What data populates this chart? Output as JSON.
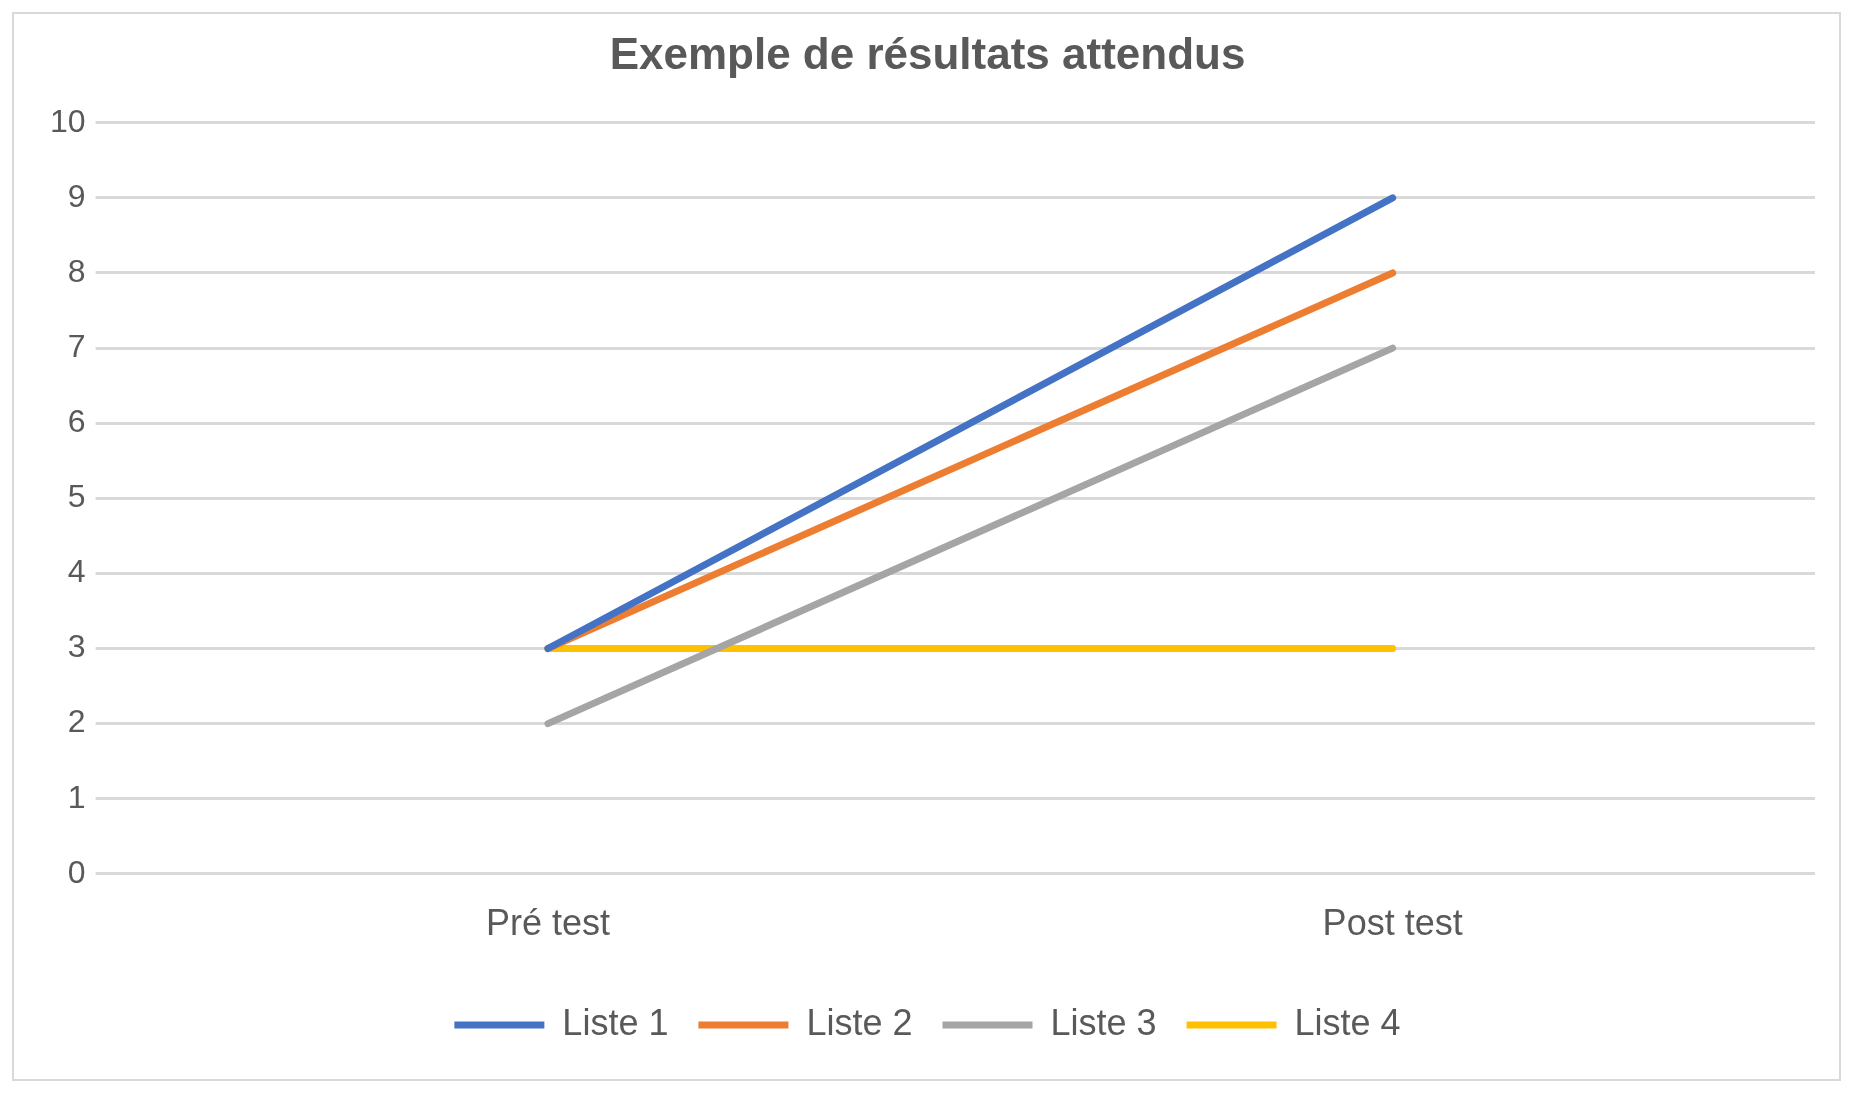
{
  "chart_data": {
    "type": "line",
    "title": "Exemple de résultats attendus",
    "categories": [
      "Pré test",
      "Post test"
    ],
    "series": [
      {
        "name": "Liste 1",
        "color": "#4472c4",
        "values": [
          3,
          9
        ]
      },
      {
        "name": "Liste 2",
        "color": "#ed7d31",
        "values": [
          3,
          8
        ]
      },
      {
        "name": "Liste 3",
        "color": "#a5a5a5",
        "values": [
          2,
          7
        ]
      },
      {
        "name": "Liste 4",
        "color": "#ffc000",
        "values": [
          3,
          3
        ]
      }
    ],
    "ylim": [
      0,
      10
    ],
    "yticks": [
      0,
      1,
      2,
      3,
      4,
      5,
      6,
      7,
      8,
      9,
      10
    ],
    "grid": "y",
    "legend": "bottom",
    "marker": "none",
    "line_style": "solid"
  }
}
